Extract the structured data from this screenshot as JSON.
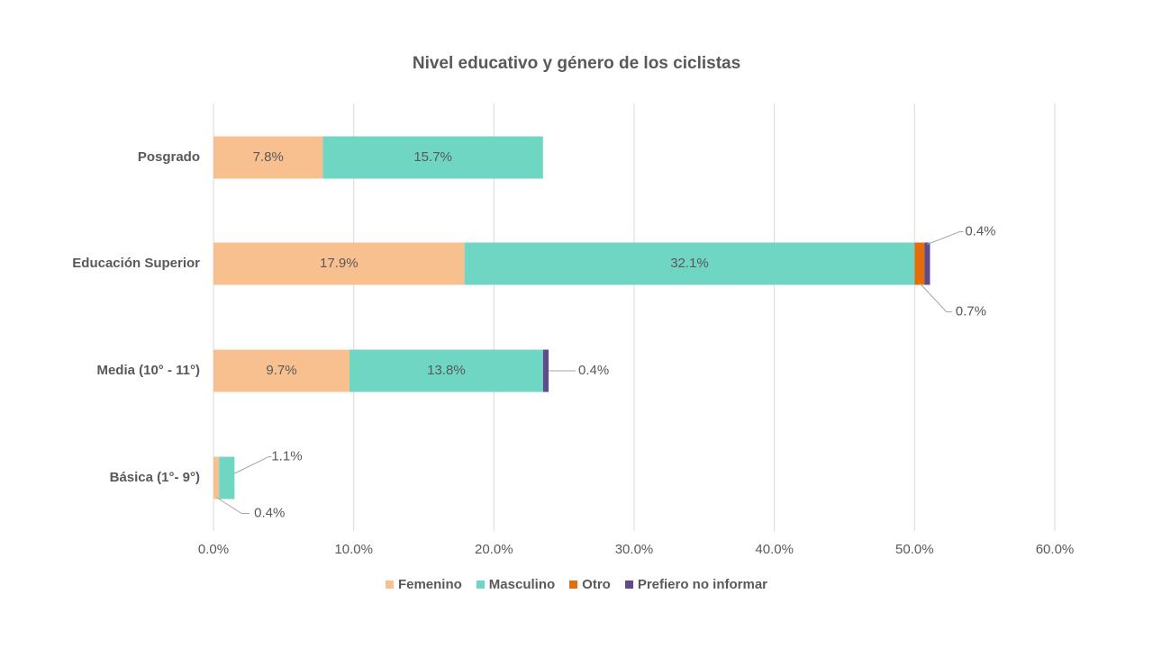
{
  "chart_data": {
    "type": "bar",
    "orientation": "horizontal",
    "stacked": true,
    "title": "Nivel educativo y género de los ciclistas",
    "categories": [
      "Posgrado",
      "Educación Superior",
      "Media (10° - 11°)",
      "Básica (1°- 9°)"
    ],
    "series": [
      {
        "name": "Femenino",
        "color": "#F9C08F",
        "values": [
          7.8,
          17.9,
          9.7,
          0.4
        ],
        "labels": [
          "7.8%",
          "17.9%",
          "9.7%",
          "0.4%"
        ]
      },
      {
        "name": "Masculino",
        "color": "#6FD6C4",
        "values": [
          15.7,
          32.1,
          13.8,
          1.1
        ],
        "labels": [
          "15.7%",
          "32.1%",
          "13.8%",
          "1.1%"
        ]
      },
      {
        "name": "Otro",
        "color": "#E46C0A",
        "values": [
          0,
          0.7,
          0,
          0
        ],
        "labels": [
          "",
          "0.7%",
          "",
          ""
        ]
      },
      {
        "name": "Prefiero no informar",
        "color": "#5F4B8B",
        "values": [
          0,
          0.4,
          0.4,
          0
        ],
        "labels": [
          "",
          "0.4%",
          "0.4%",
          ""
        ]
      }
    ],
    "xlim": [
      0,
      60
    ],
    "xticks": [
      "0.0%",
      "10.0%",
      "20.0%",
      "30.0%",
      "40.0%",
      "50.0%",
      "60.0%"
    ],
    "grid": true,
    "legend_position": "bottom"
  }
}
